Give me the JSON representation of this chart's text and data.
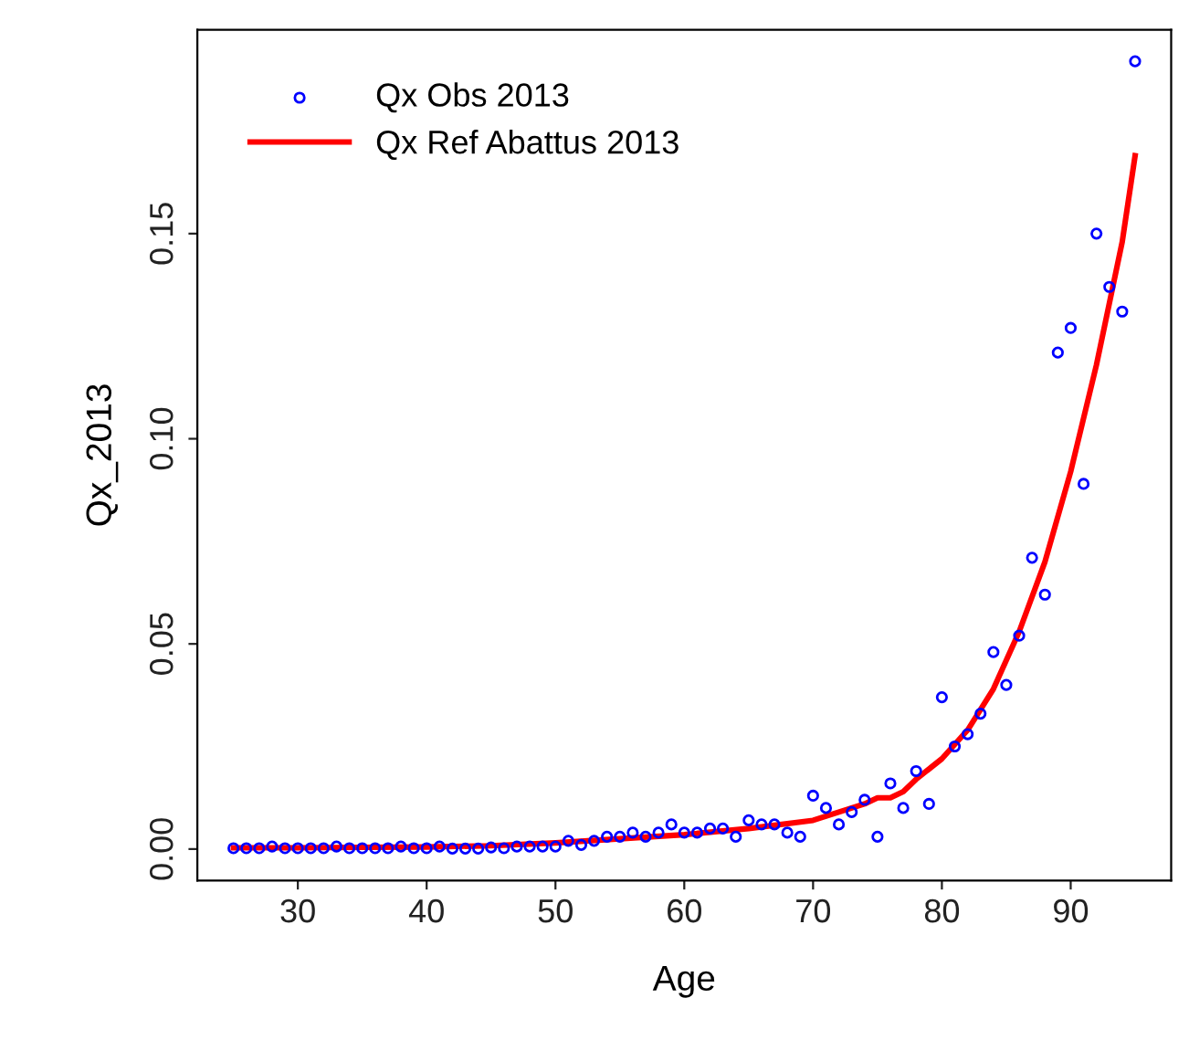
{
  "chart_data": {
    "type": "scatter",
    "xlabel": "Age",
    "ylabel": "Qx_2013",
    "xlim": [
      22.2,
      97.8
    ],
    "ylim": [
      -0.0077,
      0.1997
    ],
    "xticks": [
      30,
      40,
      50,
      60,
      70,
      80,
      90
    ],
    "yticks": [
      {
        "value": 0,
        "label": "0.00"
      },
      {
        "value": 0.05,
        "label": "0.05"
      },
      {
        "value": 0.1,
        "label": "0.10"
      },
      {
        "value": 0.15,
        "label": "0.15"
      }
    ],
    "grid": false,
    "legend": "top left",
    "series": [
      {
        "name": "Qx Obs 2013",
        "marker": "circle",
        "color": "#0000ff",
        "x": [
          25,
          26,
          27,
          28,
          29,
          30,
          31,
          32,
          33,
          34,
          35,
          36,
          37,
          38,
          39,
          40,
          41,
          42,
          43,
          44,
          45,
          46,
          47,
          48,
          49,
          50,
          51,
          52,
          53,
          54,
          55,
          56,
          57,
          58,
          59,
          60,
          61,
          62,
          63,
          64,
          65,
          66,
          67,
          68,
          69,
          70,
          71,
          72,
          73,
          74,
          75,
          76,
          77,
          78,
          79,
          80,
          81,
          82,
          83,
          84,
          85,
          86,
          87,
          88,
          89,
          90,
          91,
          92,
          93,
          94,
          95
        ],
        "values": [
          0.0002,
          0.0002,
          0.0002,
          0.0006,
          0.0002,
          0.0002,
          0.0002,
          0.0002,
          0.0006,
          0.0002,
          0.0002,
          0.0002,
          0.0002,
          0.0006,
          0.0002,
          0.0002,
          0.0006,
          0.0001,
          0.0001,
          0.0001,
          0.0004,
          0.0002,
          0.0006,
          0.0006,
          0.0006,
          0.0006,
          0.002,
          0.001,
          0.002,
          0.003,
          0.003,
          0.004,
          0.003,
          0.004,
          0.006,
          0.004,
          0.004,
          0.005,
          0.005,
          0.003,
          0.007,
          0.006,
          0.006,
          0.004,
          0.003,
          0.013,
          0.01,
          0.006,
          0.009,
          0.012,
          0.003,
          0.016,
          0.01,
          0.019,
          0.011,
          0.037,
          0.025,
          0.028,
          0.033,
          0.048,
          0.04,
          0.052,
          0.071,
          0.062,
          0.121,
          0.127,
          0.089,
          0.15,
          0.137,
          0.131,
          0.192
        ]
      },
      {
        "name": "Qx Ref Abattus 2013",
        "type": "line",
        "line_style": "solid",
        "color": "#ff0000",
        "x": [
          25,
          30,
          35,
          40,
          45,
          50,
          55,
          60,
          65,
          70,
          72,
          74,
          75,
          76,
          77,
          78,
          80,
          82,
          84,
          86,
          88,
          90,
          92,
          94,
          95
        ],
        "values": [
          0.0003,
          0.0003,
          0.0004,
          0.0005,
          0.0008,
          0.0015,
          0.0025,
          0.0035,
          0.005,
          0.007,
          0.009,
          0.011,
          0.0125,
          0.0125,
          0.014,
          0.017,
          0.022,
          0.029,
          0.039,
          0.053,
          0.07,
          0.092,
          0.118,
          0.148,
          0.169
        ]
      }
    ]
  }
}
